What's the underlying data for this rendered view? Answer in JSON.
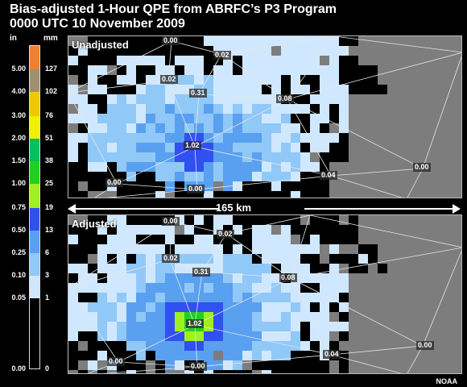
{
  "title": {
    "line1": "Bias-adjusted 1-Hour QPE from ABRFC’s P3 Program",
    "line2": "0000 UTC 10 November 2009"
  },
  "legend": {
    "unit_in": "in",
    "unit_mm": "mm",
    "entries": [
      {
        "in": "5.00",
        "mm": "127",
        "color": "#f08030"
      },
      {
        "in": "4.00",
        "mm": "102",
        "color": "#a09070"
      },
      {
        "in": "3.00",
        "mm": "76",
        "color": "#f0c800"
      },
      {
        "in": "2.00",
        "mm": "51",
        "color": "#f0f000"
      },
      {
        "in": "1.50",
        "mm": "38",
        "color": "#00c060"
      },
      {
        "in": "1.00",
        "mm": "25",
        "color": "#20d020"
      },
      {
        "in": "0.75",
        "mm": "19",
        "color": "#a0f020"
      },
      {
        "in": "0.50",
        "mm": "13",
        "color": "#3050f0"
      },
      {
        "in": "0.25",
        "mm": "6",
        "color": "#5aa0f0"
      },
      {
        "in": "0.10",
        "mm": "3",
        "color": "#90c8f8"
      },
      {
        "in": "0.05",
        "mm": "1",
        "color": "#d0e8ff"
      },
      {
        "in": "0.00",
        "mm": "0",
        "color": "#000000"
      }
    ]
  },
  "panels": {
    "top": {
      "label": "Unadjusted",
      "gauges": [
        "0.00",
        "0.02",
        "0.02",
        "0.31",
        "0.08",
        "1.02",
        "0.04",
        "0.00",
        "0.00",
        "0.00"
      ]
    },
    "bottom": {
      "label": "Adjusted",
      "gauges": [
        "0.00",
        "0.02",
        "0.02",
        "0.31",
        "0.08",
        "1.02",
        "0.04",
        "0.00",
        "0.00",
        "0.00"
      ]
    }
  },
  "scale_label": "165 km",
  "credit": "NOAA",
  "colors": {
    "background": "#000000",
    "no_data": "#7d7d7d",
    "zero_precip": "#000000"
  }
}
